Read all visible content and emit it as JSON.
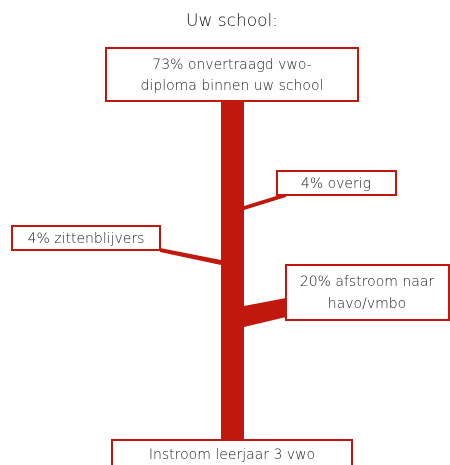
{
  "title": "Uw school:",
  "nodes": [
    {
      "lines": [
        "73% onvertraagd vwo-",
        "diploma binnen uw school"
      ]
    },
    {
      "lines": [
        "4% overig"
      ]
    },
    {
      "lines": [
        "4% zittenblijvers"
      ]
    },
    {
      "lines": [
        "20% afstroom naar",
        "havo/vmbo"
      ]
    },
    {
      "lines": [
        "Instroom leerjaar 3 vwo"
      ]
    }
  ]
}
